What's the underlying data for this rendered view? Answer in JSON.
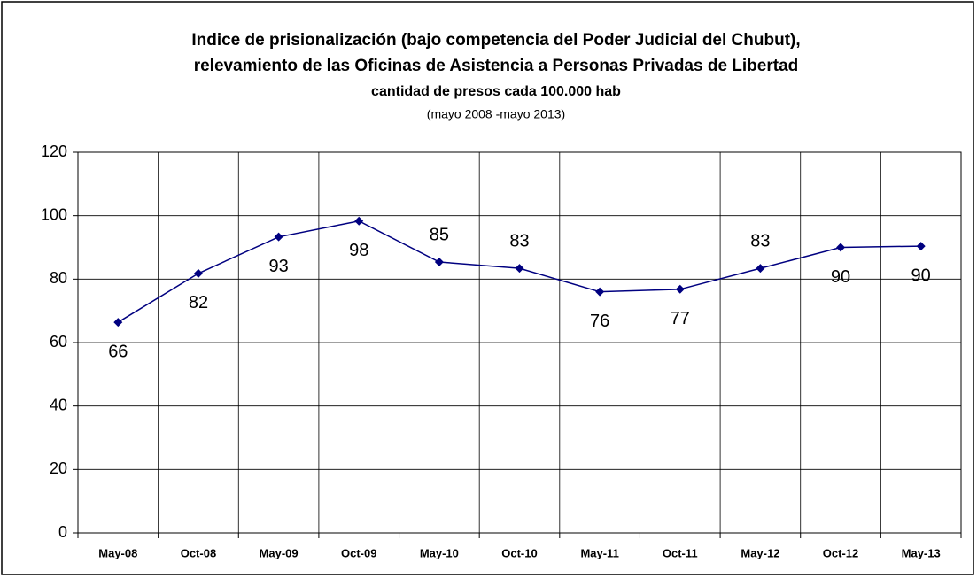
{
  "chart_data": {
    "type": "line",
    "title": [
      "Indice de prisionalización (bajo competencia del Poder Judicial del Chubut),",
      "relevamiento de las Oficinas de Asistencia a Personas Privadas de Libertad"
    ],
    "subtitle": "cantidad de presos cada 100.000 hab",
    "note": "(mayo 2008 -mayo 2013)",
    "categories": [
      "May-08",
      "Oct-08",
      "May-09",
      "Oct-09",
      "May-10",
      "Oct-10",
      "May-11",
      "Oct-11",
      "May-12",
      "Oct-12",
      "May-13"
    ],
    "values": [
      66.4,
      81.8,
      93.3,
      98.3,
      85.4,
      83.4,
      76.0,
      76.8,
      83.4,
      90.0,
      90.4
    ],
    "value_labels": [
      "66",
      "82",
      "93",
      "98",
      "85",
      "83",
      "76",
      "77",
      "83",
      "90",
      "90"
    ],
    "color": "#000080",
    "ylim": [
      0,
      120
    ],
    "yticks": [
      0,
      20,
      40,
      60,
      80,
      100,
      120
    ],
    "grid": true
  }
}
